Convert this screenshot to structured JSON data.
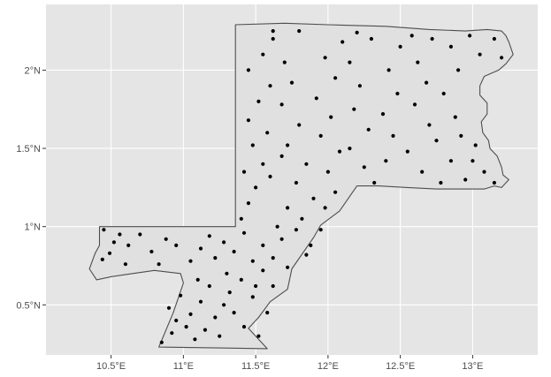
{
  "map": {
    "x_ticks": [
      {
        "label": "10.5°E",
        "value": 10.5
      },
      {
        "label": "11°E",
        "value": 11.0
      },
      {
        "label": "11.5°E",
        "value": 11.5
      },
      {
        "label": "12°E",
        "value": 12.0
      },
      {
        "label": "12.5°E",
        "value": 12.5
      },
      {
        "label": "13°E",
        "value": 13.0
      }
    ],
    "y_ticks": [
      {
        "label": "0.5°N",
        "value": 0.5
      },
      {
        "label": "1°N",
        "value": 1.0
      },
      {
        "label": "1.5°N",
        "value": 1.5
      },
      {
        "label": "2°N",
        "value": 2.0
      }
    ],
    "xlim": [
      10.05,
      13.45
    ],
    "ylim": [
      0.18,
      2.42
    ],
    "panel_color": "#e5e5e5",
    "grid_color": "#ffffff",
    "region_fill": "#e0e0e0",
    "region_stroke": "#4d4d4d",
    "point_color": "#000000",
    "region_boundary": [
      [
        10.42,
        1.0
      ],
      [
        11.36,
        1.0
      ],
      [
        11.36,
        2.29
      ],
      [
        11.7,
        2.3
      ],
      [
        12.0,
        2.29
      ],
      [
        12.4,
        2.28
      ],
      [
        12.7,
        2.26
      ],
      [
        12.95,
        2.25
      ],
      [
        13.1,
        2.26
      ],
      [
        13.2,
        2.25
      ],
      [
        13.23,
        2.22
      ],
      [
        13.25,
        2.18
      ],
      [
        13.28,
        2.1
      ],
      [
        13.23,
        2.04
      ],
      [
        13.18,
        2.0
      ],
      [
        13.08,
        1.96
      ],
      [
        13.05,
        1.9
      ],
      [
        13.05,
        1.84
      ],
      [
        13.1,
        1.79
      ],
      [
        13.1,
        1.72
      ],
      [
        13.06,
        1.67
      ],
      [
        13.07,
        1.6
      ],
      [
        13.11,
        1.55
      ],
      [
        13.12,
        1.5
      ],
      [
        13.17,
        1.45
      ],
      [
        13.2,
        1.38
      ],
      [
        13.21,
        1.33
      ],
      [
        13.25,
        1.3
      ],
      [
        13.2,
        1.25
      ],
      [
        13.15,
        1.26
      ],
      [
        13.08,
        1.24
      ],
      [
        12.95,
        1.24
      ],
      [
        12.75,
        1.24
      ],
      [
        12.55,
        1.25
      ],
      [
        12.35,
        1.26
      ],
      [
        12.2,
        1.26
      ],
      [
        12.08,
        1.1
      ],
      [
        11.95,
        1.01
      ],
      [
        11.9,
        0.93
      ],
      [
        11.75,
        0.73
      ],
      [
        11.72,
        0.6
      ],
      [
        11.6,
        0.52
      ],
      [
        11.52,
        0.42
      ],
      [
        11.45,
        0.35
      ],
      [
        11.58,
        0.22
      ],
      [
        10.83,
        0.23
      ],
      [
        10.93,
        0.45
      ],
      [
        11.0,
        0.64
      ],
      [
        10.98,
        0.7
      ],
      [
        10.8,
        0.72
      ],
      [
        10.65,
        0.7
      ],
      [
        10.5,
        0.68
      ],
      [
        10.4,
        0.66
      ],
      [
        10.35,
        0.73
      ],
      [
        10.39,
        0.83
      ],
      [
        10.42,
        0.88
      ],
      [
        10.42,
        1.0
      ]
    ],
    "points": [
      [
        10.45,
        0.98
      ],
      [
        10.52,
        0.9
      ],
      [
        10.49,
        0.83
      ],
      [
        10.44,
        0.79
      ],
      [
        10.62,
        0.88
      ],
      [
        10.7,
        0.95
      ],
      [
        10.78,
        0.84
      ],
      [
        10.88,
        0.92
      ],
      [
        10.6,
        0.76
      ],
      [
        10.83,
        0.76
      ],
      [
        10.95,
        0.88
      ],
      [
        10.56,
        0.95
      ],
      [
        10.85,
        0.26
      ],
      [
        10.92,
        0.32
      ],
      [
        10.95,
        0.4
      ],
      [
        10.9,
        0.48
      ],
      [
        10.98,
        0.56
      ],
      [
        11.02,
        0.36
      ],
      [
        11.05,
        0.44
      ],
      [
        11.08,
        0.28
      ],
      [
        11.12,
        0.52
      ],
      [
        11.15,
        0.34
      ],
      [
        11.18,
        0.62
      ],
      [
        11.22,
        0.42
      ],
      [
        11.25,
        0.3
      ],
      [
        11.28,
        0.5
      ],
      [
        11.3,
        0.7
      ],
      [
        11.32,
        0.58
      ],
      [
        11.35,
        0.45
      ],
      [
        11.4,
        0.66
      ],
      [
        11.42,
        0.36
      ],
      [
        11.48,
        0.55
      ],
      [
        11.52,
        0.3
      ],
      [
        11.55,
        0.72
      ],
      [
        11.58,
        0.45
      ],
      [
        11.62,
        0.62
      ],
      [
        11.05,
        0.78
      ],
      [
        11.12,
        0.86
      ],
      [
        11.18,
        0.94
      ],
      [
        11.22,
        0.8
      ],
      [
        11.28,
        0.9
      ],
      [
        11.35,
        0.84
      ],
      [
        11.42,
        0.96
      ],
      [
        11.48,
        0.78
      ],
      [
        11.55,
        0.88
      ],
      [
        11.62,
        0.8
      ],
      [
        11.68,
        0.92
      ],
      [
        11.72,
        0.74
      ],
      [
        11.4,
        1.05
      ],
      [
        11.45,
        1.15
      ],
      [
        11.5,
        1.25
      ],
      [
        11.42,
        1.35
      ],
      [
        11.55,
        1.4
      ],
      [
        11.48,
        1.52
      ],
      [
        11.58,
        1.6
      ],
      [
        11.45,
        1.68
      ],
      [
        11.52,
        1.8
      ],
      [
        11.6,
        1.9
      ],
      [
        11.45,
        2.0
      ],
      [
        11.55,
        2.1
      ],
      [
        11.62,
        2.2
      ],
      [
        11.7,
        2.05
      ],
      [
        11.75,
        1.92
      ],
      [
        11.68,
        1.78
      ],
      [
        11.8,
        1.65
      ],
      [
        11.72,
        1.52
      ],
      [
        11.85,
        1.4
      ],
      [
        11.78,
        1.28
      ],
      [
        11.9,
        1.18
      ],
      [
        11.82,
        1.05
      ],
      [
        11.95,
        0.98
      ],
      [
        11.88,
        0.88
      ],
      [
        11.98,
        1.12
      ],
      [
        12.05,
        1.22
      ],
      [
        12.0,
        1.35
      ],
      [
        12.08,
        1.48
      ],
      [
        11.95,
        1.58
      ],
      [
        12.02,
        1.7
      ],
      [
        11.92,
        1.82
      ],
      [
        12.05,
        1.95
      ],
      [
        11.98,
        2.08
      ],
      [
        12.1,
        2.18
      ],
      [
        12.2,
        2.24
      ],
      [
        12.15,
        2.05
      ],
      [
        12.22,
        1.9
      ],
      [
        12.18,
        1.75
      ],
      [
        12.28,
        1.62
      ],
      [
        12.15,
        1.5
      ],
      [
        12.25,
        1.38
      ],
      [
        12.32,
        1.28
      ],
      [
        12.4,
        1.42
      ],
      [
        12.45,
        1.58
      ],
      [
        12.38,
        1.72
      ],
      [
        12.48,
        1.85
      ],
      [
        12.42,
        2.0
      ],
      [
        12.5,
        2.15
      ],
      [
        12.58,
        2.22
      ],
      [
        12.62,
        2.05
      ],
      [
        12.68,
        1.92
      ],
      [
        12.6,
        1.78
      ],
      [
        12.7,
        1.65
      ],
      [
        12.55,
        1.48
      ],
      [
        12.65,
        1.35
      ],
      [
        12.78,
        1.28
      ],
      [
        12.85,
        1.42
      ],
      [
        12.75,
        1.55
      ],
      [
        12.88,
        1.7
      ],
      [
        12.8,
        1.85
      ],
      [
        12.9,
        2.0
      ],
      [
        12.85,
        2.15
      ],
      [
        12.98,
        2.22
      ],
      [
        13.05,
        2.1
      ],
      [
        13.15,
        2.2
      ],
      [
        13.2,
        2.08
      ],
      [
        12.95,
        1.3
      ],
      [
        13.0,
        1.42
      ],
      [
        13.08,
        1.35
      ],
      [
        13.15,
        1.28
      ],
      [
        12.92,
        1.58
      ],
      [
        13.02,
        1.52
      ],
      [
        11.65,
        1.0
      ],
      [
        11.72,
        1.12
      ],
      [
        11.78,
        0.98
      ],
      [
        11.85,
        0.82
      ],
      [
        11.6,
        1.32
      ],
      [
        11.68,
        1.45
      ],
      [
        11.62,
        2.25
      ],
      [
        11.8,
        2.25
      ],
      [
        12.3,
        2.2
      ],
      [
        12.72,
        2.2
      ],
      [
        11.5,
        0.62
      ],
      [
        11.1,
        0.66
      ]
    ]
  }
}
